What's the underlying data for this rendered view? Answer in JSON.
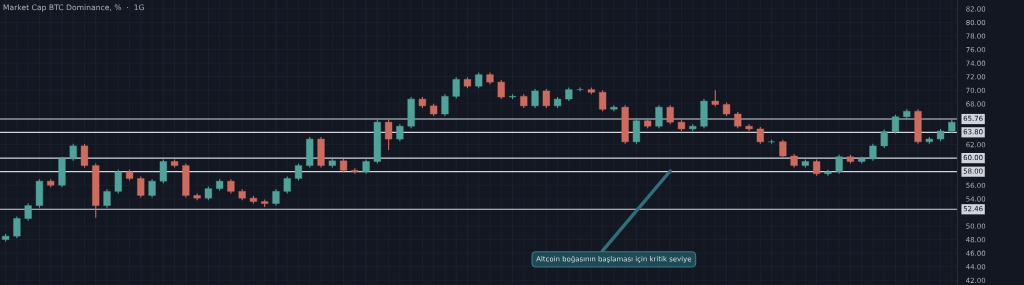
{
  "chart_data": {
    "type": "candlestick",
    "title": "Market Cap BTC Dominance, %  ·  1G",
    "categories": [
      null,
      null,
      null,
      null,
      null,
      null,
      null,
      null,
      null,
      null,
      null,
      null,
      null,
      null,
      null,
      null,
      null,
      null,
      null,
      null,
      null,
      null,
      null,
      null,
      null,
      null,
      null,
      null,
      null,
      null,
      null,
      null,
      null,
      null,
      null,
      null,
      null,
      null,
      null,
      null,
      null,
      null,
      null,
      null,
      null,
      null,
      null,
      null,
      null,
      null,
      null,
      null,
      null,
      null,
      null,
      null,
      null,
      null,
      null,
      null,
      null,
      null,
      null,
      null,
      null,
      null,
      null,
      null,
      null,
      null,
      null,
      null,
      null,
      null,
      null,
      null,
      null,
      null,
      null,
      null,
      null,
      null,
      null,
      null,
      null
    ],
    "ohlc": [
      [
        48.0,
        48.8,
        47.7,
        48.5
      ],
      [
        48.5,
        51.4,
        48.2,
        51.1
      ],
      [
        51.1,
        53.3,
        50.8,
        53.0
      ],
      [
        53.0,
        56.9,
        52.7,
        56.6
      ],
      [
        56.6,
        56.9,
        55.7,
        56.0
      ],
      [
        56.0,
        60.2,
        55.7,
        59.9
      ],
      [
        59.9,
        62.1,
        59.6,
        61.8
      ],
      [
        61.8,
        62.1,
        58.6,
        58.9
      ],
      [
        58.9,
        59.2,
        51.2,
        53.0
      ],
      [
        53.0,
        55.4,
        52.7,
        55.1
      ],
      [
        55.1,
        58.3,
        54.8,
        58.0
      ],
      [
        58.0,
        58.3,
        56.7,
        57.0
      ],
      [
        57.0,
        57.3,
        54.2,
        54.5
      ],
      [
        54.5,
        56.9,
        54.2,
        56.6
      ],
      [
        56.6,
        59.8,
        56.3,
        59.5
      ],
      [
        59.5,
        59.8,
        58.6,
        58.9
      ],
      [
        58.9,
        59.2,
        54.2,
        54.5
      ],
      [
        54.5,
        54.8,
        53.8,
        54.1
      ],
      [
        54.1,
        55.8,
        53.8,
        55.5
      ],
      [
        55.5,
        56.9,
        55.2,
        56.6
      ],
      [
        56.6,
        56.9,
        54.8,
        55.1
      ],
      [
        55.1,
        55.4,
        53.8,
        54.1
      ],
      [
        54.1,
        54.4,
        53.3,
        53.6
      ],
      [
        53.6,
        53.9,
        52.8,
        53.3
      ],
      [
        53.3,
        55.4,
        53.0,
        55.1
      ],
      [
        55.1,
        57.3,
        54.8,
        57.0
      ],
      [
        57.0,
        59.2,
        56.7,
        58.9
      ],
      [
        58.9,
        63.1,
        58.6,
        62.8
      ],
      [
        62.8,
        63.1,
        58.6,
        58.9
      ],
      [
        58.9,
        59.9,
        58.6,
        59.6
      ],
      [
        59.6,
        59.9,
        57.9,
        58.2
      ],
      [
        58.2,
        58.5,
        57.7,
        58.0
      ],
      [
        58.0,
        59.8,
        57.7,
        59.5
      ],
      [
        59.5,
        65.6,
        59.2,
        65.3
      ],
      [
        65.3,
        65.6,
        61.2,
        62.8
      ],
      [
        62.8,
        65.0,
        62.5,
        64.7
      ],
      [
        64.7,
        69.0,
        64.4,
        68.7
      ],
      [
        68.7,
        69.0,
        67.4,
        67.7
      ],
      [
        67.7,
        68.0,
        66.2,
        66.5
      ],
      [
        66.5,
        69.4,
        66.2,
        69.1
      ],
      [
        69.1,
        71.9,
        68.8,
        71.6
      ],
      [
        71.6,
        71.9,
        70.3,
        70.6
      ],
      [
        70.6,
        72.6,
        70.3,
        72.3
      ],
      [
        72.3,
        72.6,
        70.9,
        71.2
      ],
      [
        71.2,
        71.5,
        68.7,
        69.0
      ],
      [
        69.0,
        69.4,
        68.7,
        69.1
      ],
      [
        69.1,
        69.4,
        67.4,
        67.7
      ],
      [
        67.7,
        70.2,
        67.4,
        69.9
      ],
      [
        69.9,
        70.2,
        67.4,
        67.7
      ],
      [
        67.7,
        69.0,
        67.4,
        68.7
      ],
      [
        68.7,
        70.4,
        68.4,
        70.1
      ],
      [
        70.1,
        70.4,
        69.8,
        70.1
      ],
      [
        70.1,
        70.4,
        69.4,
        69.7
      ],
      [
        69.7,
        70.0,
        66.9,
        67.2
      ],
      [
        67.2,
        67.8,
        66.9,
        67.5
      ],
      [
        67.5,
        67.8,
        62.1,
        62.4
      ],
      [
        62.4,
        65.8,
        62.1,
        65.5
      ],
      [
        65.5,
        65.8,
        64.4,
        64.7
      ],
      [
        64.7,
        67.8,
        64.4,
        67.5
      ],
      [
        67.5,
        67.8,
        65.0,
        65.3
      ],
      [
        65.3,
        65.6,
        64.0,
        64.3
      ],
      [
        64.3,
        65.0,
        64.0,
        64.7
      ],
      [
        64.7,
        68.7,
        64.4,
        68.4
      ],
      [
        68.4,
        70.0,
        67.6,
        67.9
      ],
      [
        67.9,
        68.2,
        66.2,
        66.5
      ],
      [
        66.5,
        66.8,
        64.4,
        64.7
      ],
      [
        64.7,
        65.0,
        64.0,
        64.3
      ],
      [
        64.3,
        64.6,
        62.1,
        62.4
      ],
      [
        62.4,
        62.7,
        62.1,
        62.4
      ],
      [
        62.4,
        62.7,
        60.0,
        60.3
      ],
      [
        60.3,
        60.6,
        58.6,
        58.9
      ],
      [
        58.9,
        59.8,
        58.6,
        59.5
      ],
      [
        59.5,
        59.8,
        57.4,
        57.7
      ],
      [
        57.7,
        58.3,
        57.4,
        58.0
      ],
      [
        58.0,
        60.5,
        57.7,
        60.2
      ],
      [
        60.2,
        60.5,
        59.2,
        59.5
      ],
      [
        59.5,
        60.2,
        59.2,
        59.9
      ],
      [
        59.9,
        62.1,
        59.6,
        61.8
      ],
      [
        61.8,
        64.2,
        61.5,
        63.9
      ],
      [
        63.9,
        66.4,
        63.6,
        66.1
      ],
      [
        66.1,
        67.2,
        65.8,
        66.9
      ],
      [
        66.9,
        67.2,
        62.1,
        62.4
      ],
      [
        62.4,
        63.1,
        62.1,
        62.8
      ],
      [
        62.8,
        64.3,
        62.5,
        64.0
      ],
      [
        64.0,
        65.6,
        63.7,
        65.3
      ]
    ],
    "ylim": [
      41.3,
      83.3
    ],
    "yticks": [
      {
        "value": 42,
        "label": "42.00"
      },
      {
        "value": 44,
        "label": "44.00"
      },
      {
        "value": 46,
        "label": "46.00"
      },
      {
        "value": 48,
        "label": "48.00"
      },
      {
        "value": 50,
        "label": "50.00"
      },
      {
        "value": 54,
        "label": "54.00"
      },
      {
        "value": 56,
        "label": "56.00"
      },
      {
        "value": 62,
        "label": "62.00"
      },
      {
        "value": 68,
        "label": "68.00"
      },
      {
        "value": 70,
        "label": "70.00"
      },
      {
        "value": 72,
        "label": "72.00"
      },
      {
        "value": 74,
        "label": "74.00"
      },
      {
        "value": 76,
        "label": "76.00"
      },
      {
        "value": 78,
        "label": "78.00"
      },
      {
        "value": 80,
        "label": "80.00"
      },
      {
        "value": 82,
        "label": "82.00"
      }
    ],
    "ref_lines": [
      {
        "axis": "y",
        "value": 65.76,
        "label": "65.76",
        "color": "#d1d4dc"
      },
      {
        "axis": "y",
        "value": 63.8,
        "label": "63.80",
        "color": "#d1d4dc"
      },
      {
        "axis": "y",
        "value": 60.0,
        "label": "60.00",
        "color": "#d1d4dc"
      },
      {
        "axis": "y",
        "value": 58.0,
        "label": "58.00",
        "color": "#d1d4dc"
      },
      {
        "axis": "y",
        "value": 52.46,
        "label": "52.46",
        "color": "#d1d4dc"
      }
    ],
    "annotations": [
      "Altcoin boğasının başlaması için kritik seviye"
    ],
    "grid": true
  }
}
